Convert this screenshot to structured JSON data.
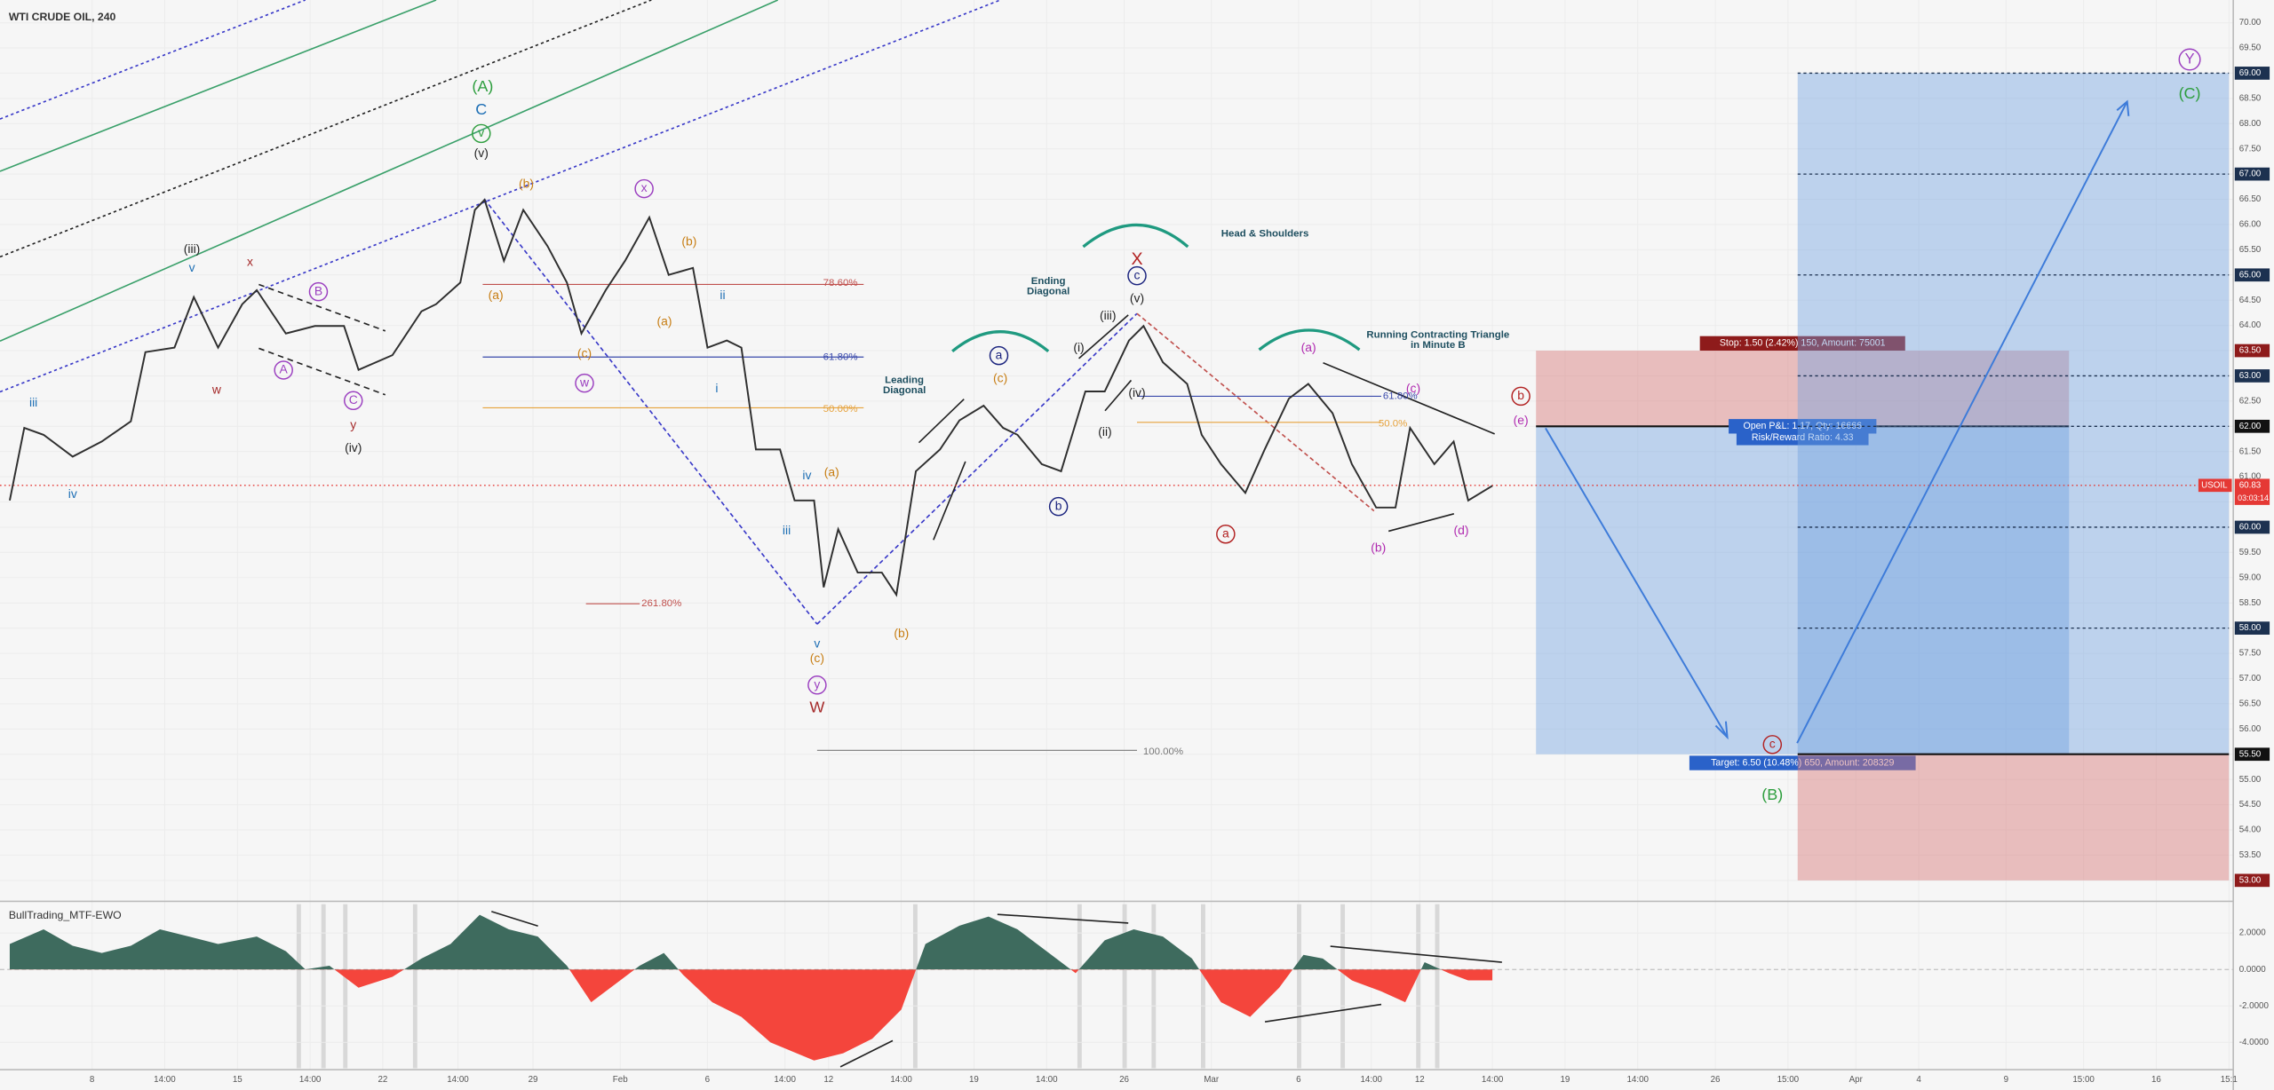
{
  "chart_data": [
    {
      "type": "line",
      "title": "WTI CRUDE OIL, 240",
      "x": [
        2,
        5,
        9,
        15,
        21,
        27,
        30,
        36,
        40,
        45,
        50,
        53,
        59,
        65,
        71,
        74,
        81,
        87,
        90,
        95,
        98,
        100,
        104,
        108,
        113,
        117,
        120,
        125,
        129,
        134,
        138,
        143,
        146,
        150,
        153,
        156,
        161,
        164,
        168,
        170,
        173,
        177,
        182,
        185,
        189,
        194,
        198,
        203,
        207,
        210,
        215,
        219,
        224,
        228,
        233,
        236,
        240,
        245,
        248,
        252,
        257,
        261,
        266,
        270,
        275,
        279,
        284,
        288,
        291,
        296,
        300,
        303,
        308
      ],
      "series": [
        {
          "name": "USOIL",
          "color": "#2f2f2f",
          "values": [
            60.53,
            61.97,
            61.83,
            61.4,
            61.7,
            62.1,
            63.47,
            63.56,
            64.56,
            63.56,
            64.42,
            64.7,
            63.84,
            63.99,
            63.99,
            63.12,
            63.41,
            64.28,
            64.42,
            64.85,
            66.29,
            66.49,
            65.28,
            66.29,
            65.57,
            64.85,
            63.84,
            64.7,
            65.28,
            66.14,
            65.0,
            65.14,
            63.56,
            63.7,
            63.56,
            61.54,
            61.54,
            60.53,
            60.53,
            58.81,
            59.96,
            59.1,
            59.1,
            58.66,
            61.11,
            61.54,
            62.12,
            62.41,
            61.97,
            61.83,
            61.25,
            61.11,
            62.69,
            62.69,
            63.7,
            63.99,
            63.27,
            62.84,
            61.83,
            61.25,
            60.68,
            61.54,
            62.55,
            62.84,
            62.26,
            61.25,
            60.39,
            60.39,
            61.97,
            61.25,
            61.7,
            60.53,
            60.82
          ]
        }
      ],
      "xlim": [
        0,
        460
      ],
      "ylim": [
        52.7,
        70.45
      ],
      "xticks": [
        {
          "value": 19,
          "label": "8"
        },
        {
          "value": 34,
          "label": "14:00"
        },
        {
          "value": 49,
          "label": "15"
        },
        {
          "value": 64,
          "label": "14:00"
        },
        {
          "value": 79,
          "label": "22"
        },
        {
          "value": 94.5,
          "label": "14:00"
        },
        {
          "value": 110,
          "label": "29"
        },
        {
          "value": 128,
          "label": "Feb"
        },
        {
          "value": 146,
          "label": "6"
        },
        {
          "value": 162,
          "label": "14:00"
        },
        {
          "value": 171,
          "label": "12"
        },
        {
          "value": 186,
          "label": "14:00"
        },
        {
          "value": 201,
          "label": "19"
        },
        {
          "value": 216,
          "label": "14:00"
        },
        {
          "value": 232,
          "label": "26"
        },
        {
          "value": 250,
          "label": "Mar"
        },
        {
          "value": 268,
          "label": "6"
        },
        {
          "value": 283,
          "label": "14:00"
        },
        {
          "value": 293,
          "label": "12"
        },
        {
          "value": 308,
          "label": "14:00"
        },
        {
          "value": 323,
          "label": "19"
        },
        {
          "value": 338,
          "label": "14:00"
        },
        {
          "value": 354,
          "label": "26"
        },
        {
          "value": 369,
          "label": "15:00"
        },
        {
          "value": 383,
          "label": "Apr"
        },
        {
          "value": 396,
          "label": "4"
        },
        {
          "value": 414,
          "label": "9"
        },
        {
          "value": 430,
          "label": "15:00"
        },
        {
          "value": 445,
          "label": "16"
        },
        {
          "value": 460,
          "label": "15:1"
        }
      ],
      "yticks": [
        {
          "value": 53,
          "label": "53.00"
        },
        {
          "value": 53.5,
          "label": "53.50"
        },
        {
          "value": 54,
          "label": "54.00"
        },
        {
          "value": 54.5,
          "label": "54.50"
        },
        {
          "value": 55,
          "label": "55.00"
        },
        {
          "value": 55.5,
          "label": "55.50"
        },
        {
          "value": 56,
          "label": "56.00"
        },
        {
          "value": 56.5,
          "label": "56.50"
        },
        {
          "value": 57,
          "label": "57.00"
        },
        {
          "value": 57.5,
          "label": "57.50"
        },
        {
          "value": 58,
          "label": "58.00"
        },
        {
          "value": 58.5,
          "label": "58.50"
        },
        {
          "value": 59,
          "label": "59.00"
        },
        {
          "value": 59.5,
          "label": "59.50"
        },
        {
          "value": 60,
          "label": "60.00"
        },
        {
          "value": 60.5,
          "label": "60.50"
        },
        {
          "value": 61,
          "label": "61.00"
        },
        {
          "value": 61.5,
          "label": "61.50"
        },
        {
          "value": 62,
          "label": "62.00"
        },
        {
          "value": 62.5,
          "label": "62.50"
        },
        {
          "value": 63,
          "label": "63.00"
        },
        {
          "value": 63.5,
          "label": "63.50"
        },
        {
          "value": 64,
          "label": "64.00"
        },
        {
          "value": 64.5,
          "label": "64.50"
        },
        {
          "value": 65,
          "label": "65.00"
        },
        {
          "value": 65.5,
          "label": "65.50"
        },
        {
          "value": 66,
          "label": "66.00"
        },
        {
          "value": 66.5,
          "label": "66.50"
        },
        {
          "value": 67,
          "label": "67.00"
        },
        {
          "value": 67.5,
          "label": "67.50"
        },
        {
          "value": 68,
          "label": "68.00"
        },
        {
          "value": 68.5,
          "label": "68.50"
        },
        {
          "value": 69,
          "label": "69.00"
        },
        {
          "value": 69.5,
          "label": "69.50"
        },
        {
          "value": 70,
          "label": "70.00"
        }
      ],
      "current_price": {
        "value": 60.83,
        "label": "60.83",
        "countdown": "03:03:14",
        "color": "#e53935"
      },
      "price_labels": [
        {
          "value": 69,
          "label": "69.00",
          "color": "#1c3150"
        },
        {
          "value": 67,
          "label": "67.00",
          "color": "#1c3150"
        },
        {
          "value": 65,
          "label": "65.00",
          "color": "#1c3150"
        },
        {
          "value": 63.5,
          "label": "63.50",
          "color": "#8e1b1b"
        },
        {
          "value": 63,
          "label": "63.00",
          "color": "#1c3150"
        },
        {
          "value": 62,
          "label": "62.00",
          "color": "#111111"
        },
        {
          "value": 60,
          "label": "60.00",
          "color": "#1c3150"
        },
        {
          "value": 58,
          "label": "58.00",
          "color": "#1c3150"
        },
        {
          "value": 55.5,
          "label": "55.50",
          "color": "#111111"
        },
        {
          "value": 53,
          "label": "53.00",
          "color": "#8e1b1b"
        }
      ],
      "position_levels": [
        69,
        67,
        65,
        63,
        62,
        60,
        58
      ],
      "positions": [
        {
          "x": [
            317,
            427
          ],
          "entry": 62,
          "stop": 63.5,
          "target": 55.5,
          "stop_label": "Stop: 1.50 (2.42%) 150, Amount: 75001",
          "pnl_label": "Open P&L: 1.17, Qty: 16666",
          "rr_label": "Risk/Reward Ratio: 4.33",
          "target_label": "Target: 6.50 (10.48%) 650, Amount: 208329"
        },
        {
          "x": [
            371,
            460
          ],
          "entry": 55.5,
          "stop": 53,
          "target": 69
        }
      ],
      "annotations": [
        "(A)",
        "C",
        "v",
        "(v)",
        "(iii)",
        "v",
        "x",
        "iii",
        "iv",
        "w",
        "A",
        "B",
        "C",
        "y",
        "(iv)",
        "(b)",
        "(a)",
        "(c)",
        "w",
        "x",
        "(b)",
        "(a)",
        "ii",
        "i",
        "iv",
        "(a)",
        "iii",
        "v",
        "(c)",
        "y",
        "W",
        "(b)",
        "Leading",
        "Diagonal",
        "a",
        "(c)",
        "b",
        "Ending",
        "Diagonal",
        "X",
        "c",
        "(v)",
        "(iii)",
        "(i)",
        "(iv)",
        "(ii)",
        "Head & Shoulders",
        "a",
        "(a)",
        "(c)",
        "(b)",
        "(d)",
        "b",
        "(e)",
        "Running Contracting Triangle",
        "in Minute B",
        "c",
        "(B)",
        "Y",
        "(C)",
        "78.60%",
        "61.80%",
        "50.00%",
        "261.80%",
        "100.00%",
        "61.80%",
        "50.0%"
      ]
    },
    {
      "type": "area",
      "title": "BullTrading_MTF-EWO",
      "x": [
        2,
        9,
        15,
        21,
        27,
        33,
        39,
        45,
        53,
        59,
        63,
        68,
        74,
        81,
        87,
        93,
        99,
        105,
        111,
        117,
        122,
        126,
        132,
        137,
        141,
        147,
        153,
        159,
        168,
        174,
        180,
        186,
        191,
        198,
        204,
        210,
        216,
        222,
        228,
        234,
        240,
        246,
        252,
        258,
        264,
        269,
        273,
        279,
        285,
        290,
        294,
        299,
        303,
        308
      ],
      "values": [
        1.4,
        2.2,
        1.3,
        0.9,
        1.3,
        2.2,
        1.8,
        1.4,
        1.8,
        1.0,
        0,
        0.2,
        -1.0,
        -0.4,
        0.6,
        1.4,
        3.0,
        2.2,
        1.8,
        0.2,
        -1.8,
        -1.0,
        0.2,
        0.9,
        -0.3,
        -1.8,
        -2.6,
        -4.0,
        -5.0,
        -4.6,
        -3.8,
        -2.2,
        1.4,
        2.4,
        2.9,
        2.2,
        1.0,
        -0.2,
        1.6,
        2.2,
        1.8,
        0.6,
        -1.8,
        -2.6,
        -1.0,
        0.8,
        0.6,
        -0.6,
        -1.2,
        -1.8,
        0.4,
        -0.2,
        -0.6,
        -0.6
      ],
      "colors": {
        "positive": "#3e6b5e",
        "negative": "#f4453c"
      },
      "ylim": [
        -5.5,
        3.5
      ],
      "yticks": [
        {
          "value": 2,
          "label": "2.0000"
        },
        {
          "value": 0,
          "label": "0.0000"
        },
        {
          "value": -2,
          "label": "-2.0000"
        },
        {
          "value": -4,
          "label": "-4.0000"
        }
      ]
    }
  ]
}
